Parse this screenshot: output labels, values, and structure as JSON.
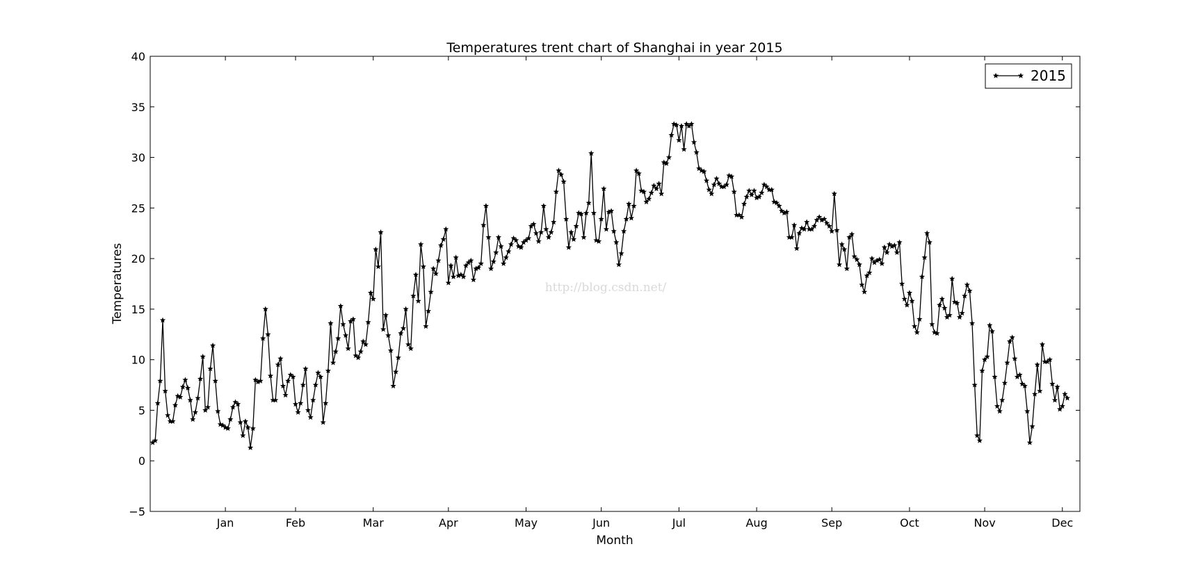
{
  "chart_data": {
    "type": "line",
    "title": "Temperatures trent chart of Shanghai in year 2015",
    "xlabel": "Month",
    "ylabel": "Temperatures",
    "ylim": [
      -5,
      40
    ],
    "y_ticks": [
      -5,
      0,
      5,
      10,
      15,
      20,
      25,
      30,
      35,
      40
    ],
    "y_tick_labels": [
      "−5",
      "0",
      "5",
      "10",
      "15",
      "20",
      "25",
      "30",
      "35",
      "40"
    ],
    "x_tick_labels": [
      "Jan",
      "Feb",
      "Mar",
      "Apr",
      "May",
      "Jun",
      "Jul",
      "Aug",
      "Sep",
      "Oct",
      "Nov",
      "Dec"
    ],
    "x_tick_positions": [
      30,
      58,
      89,
      119,
      150,
      180,
      211,
      242,
      272,
      303,
      333,
      364
    ],
    "xlim": [
      0,
      371
    ],
    "grid": false,
    "legend_position": "top-right",
    "marker": "star",
    "line_color": "#000000",
    "watermark": "http://blog.csdn.net/",
    "series": [
      {
        "name": "2015",
        "x_start": 1,
        "values": [
          1.8,
          2.0,
          5.7,
          7.9,
          13.9,
          6.9,
          4.5,
          3.9,
          3.9,
          5.5,
          6.4,
          6.3,
          7.3,
          8.0,
          7.2,
          6.0,
          4.1,
          4.8,
          6.2,
          8.1,
          10.3,
          5.0,
          5.3,
          9.1,
          11.4,
          7.9,
          4.9,
          3.6,
          3.5,
          3.3,
          3.2,
          4.1,
          5.3,
          5.8,
          5.6,
          3.8,
          2.5,
          3.9,
          3.3,
          1.3,
          3.2,
          8.0,
          7.8,
          7.9,
          12.1,
          15.0,
          12.5,
          8.4,
          6.0,
          6.0,
          9.5,
          10.1,
          7.4,
          6.5,
          7.9,
          8.5,
          8.3,
          5.6,
          4.8,
          5.7,
          7.5,
          9.1,
          5.0,
          4.3,
          6.0,
          7.5,
          8.7,
          8.3,
          3.8,
          5.7,
          8.9,
          13.6,
          9.7,
          10.8,
          12.1,
          15.3,
          13.5,
          12.4,
          11.1,
          13.8,
          14.0,
          10.4,
          10.2,
          10.8,
          11.8,
          11.5,
          13.7,
          16.6,
          16.0,
          20.9,
          19.2,
          22.6,
          13.0,
          14.4,
          12.4,
          10.9,
          7.4,
          8.8,
          10.2,
          12.6,
          13.1,
          15.0,
          11.5,
          11.1,
          16.3,
          18.4,
          15.8,
          21.4,
          19.2,
          13.3,
          14.8,
          16.7,
          19.0,
          18.5,
          19.8,
          21.3,
          21.9,
          22.9,
          17.6,
          19.3,
          18.2,
          20.1,
          18.3,
          18.4,
          18.2,
          19.3,
          19.6,
          19.8,
          17.9,
          19.0,
          19.1,
          19.5,
          23.3,
          25.2,
          22.1,
          19.0,
          19.7,
          20.6,
          22.1,
          21.2,
          19.5,
          20.1,
          20.7,
          21.4,
          22.0,
          21.8,
          21.2,
          21.1,
          21.6,
          21.8,
          22.0,
          23.2,
          23.4,
          22.5,
          21.7,
          22.6,
          25.2,
          22.9,
          22.1,
          22.6,
          23.6,
          26.6,
          28.7,
          28.3,
          27.6,
          23.9,
          21.1,
          22.6,
          21.9,
          23.2,
          24.5,
          24.4,
          22.1,
          24.5,
          25.5,
          30.4,
          24.5,
          21.8,
          21.7,
          23.9,
          26.9,
          22.9,
          24.6,
          24.7,
          22.7,
          21.6,
          19.4,
          20.5,
          22.7,
          23.9,
          25.4,
          24.0,
          25.2,
          28.7,
          28.4,
          26.7,
          26.6,
          25.6,
          25.9,
          26.5,
          27.2,
          26.9,
          27.4,
          26.4,
          29.5,
          29.4,
          30.0,
          32.2,
          33.3,
          33.2,
          31.7,
          33.1,
          30.8,
          33.3,
          33.1,
          33.3,
          31.5,
          30.5,
          28.9,
          28.7,
          28.6,
          27.7,
          26.8,
          26.4,
          27.3,
          27.9,
          27.4,
          27.1,
          27.1,
          27.3,
          28.2,
          28.1,
          26.6,
          24.3,
          24.3,
          24.1,
          25.4,
          26.1,
          26.7,
          26.3,
          26.7,
          26.0,
          26.1,
          26.5,
          27.3,
          27.1,
          26.8,
          26.8,
          25.6,
          25.5,
          25.2,
          24.7,
          24.5,
          24.6,
          22.1,
          22.1,
          23.3,
          21.0,
          22.5,
          23.0,
          22.9,
          23.6,
          22.9,
          22.9,
          23.2,
          23.8,
          24.1,
          23.8,
          23.9,
          23.5,
          23.2,
          22.7,
          26.4,
          22.8,
          19.4,
          21.4,
          20.9,
          19.0,
          22.1,
          22.4,
          20.2,
          19.9,
          19.4,
          17.4,
          16.7,
          18.3,
          18.6,
          20.0,
          19.6,
          19.8,
          19.9,
          19.5,
          21.1,
          20.6,
          21.4,
          21.2,
          21.3,
          20.6,
          21.6,
          17.5,
          16.0,
          15.4,
          16.6,
          15.8,
          13.3,
          12.7,
          14.0,
          18.2,
          20.1,
          22.5,
          21.6,
          13.5,
          12.7,
          12.6,
          15.4,
          16.0,
          15.1,
          14.2,
          14.4,
          18.0,
          15.7,
          15.6,
          14.2,
          14.6,
          16.3,
          17.4,
          16.8,
          13.6,
          7.5,
          2.5,
          2.0,
          8.9,
          10.0,
          10.3,
          13.4,
          12.8,
          8.3,
          5.4,
          4.9,
          6.0,
          7.7,
          9.7,
          11.8,
          12.2,
          10.1,
          8.3,
          8.5,
          7.6,
          7.4,
          4.9,
          1.8,
          3.4,
          6.6,
          9.5,
          6.9,
          11.5,
          9.8,
          9.8,
          10.0,
          7.6,
          6.0,
          7.3,
          5.1,
          5.4,
          6.6,
          6.2
        ]
      }
    ]
  }
}
